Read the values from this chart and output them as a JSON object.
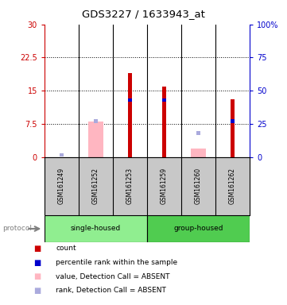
{
  "title": "GDS3227 / 1633943_at",
  "samples": [
    "GSM161249",
    "GSM161252",
    "GSM161253",
    "GSM161259",
    "GSM161260",
    "GSM161262"
  ],
  "left_ylim": [
    0,
    30
  ],
  "right_ylim": [
    0,
    100
  ],
  "left_yticks": [
    0,
    7.5,
    15,
    22.5,
    30
  ],
  "right_yticks": [
    0,
    25,
    50,
    75,
    100
  ],
  "left_ytick_labels": [
    "0",
    "7.5",
    "15",
    "22.5",
    "30"
  ],
  "right_ytick_labels": [
    "0",
    "25",
    "50",
    "75",
    "100%"
  ],
  "count_values": [
    0,
    0,
    19,
    16,
    0,
    13
  ],
  "percentile_values": [
    0,
    0,
    43,
    43,
    0,
    27
  ],
  "absent_value_values": [
    0,
    8,
    0,
    0,
    2,
    0
  ],
  "absent_rank_values": [
    1.7,
    27,
    0,
    0,
    18,
    0
  ],
  "count_color": "#CC0000",
  "percentile_color": "#0000CC",
  "absent_value_color": "#FFB6C1",
  "absent_rank_color": "#AAAADD",
  "grid_yticks": [
    7.5,
    15,
    22.5
  ],
  "legend_items": [
    {
      "color": "#CC0000",
      "label": "count"
    },
    {
      "color": "#0000CC",
      "label": "percentile rank within the sample"
    },
    {
      "color": "#FFB6C1",
      "label": "value, Detection Call = ABSENT"
    },
    {
      "color": "#AAAADD",
      "label": "rank, Detection Call = ABSENT"
    }
  ],
  "left_axis_color": "#CC0000",
  "right_axis_color": "#0000CC",
  "bg_color": "#FFFFFF",
  "label_area_color": "#C8C8C8",
  "group_color_single": "#90EE90",
  "group_color_group": "#50CC50"
}
